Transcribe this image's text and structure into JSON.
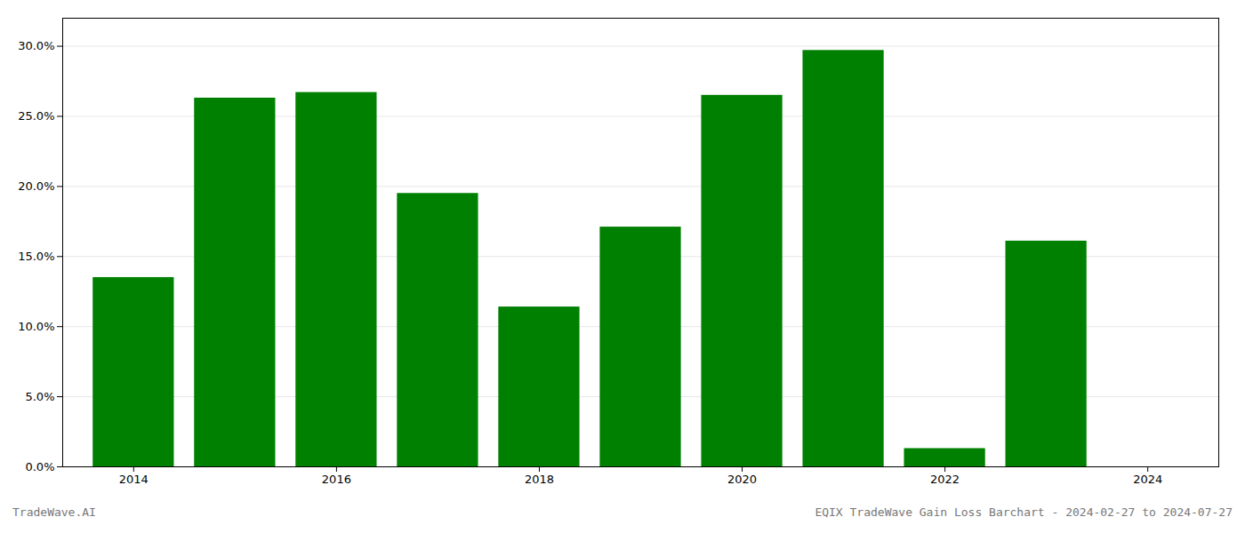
{
  "chart_data": {
    "type": "bar",
    "title": "EQIX TradeWave Gain Loss Barchart - 2024-02-27 to 2024-07-27",
    "annotations": [
      "TradeWave.AI"
    ],
    "x": [
      2014,
      2015,
      2016,
      2017,
      2018,
      2019,
      2020,
      2021,
      2022,
      2023,
      2024
    ],
    "values": [
      0.135,
      0.263,
      0.267,
      0.195,
      0.114,
      0.171,
      0.265,
      0.297,
      0.013,
      0.161,
      0.0
    ],
    "color": "#008000",
    "xlim": [
      2013.3,
      2024.7
    ],
    "xticks": [
      2014,
      2016,
      2018,
      2020,
      2022,
      2024
    ],
    "ylim": [
      0,
      0.32
    ],
    "yticks": [
      {
        "value": 0.0,
        "label": "0.0%"
      },
      {
        "value": 0.05,
        "label": "5.0%"
      },
      {
        "value": 0.1,
        "label": "10.0%"
      },
      {
        "value": 0.15,
        "label": "15.0%"
      },
      {
        "value": 0.2,
        "label": "20.0%"
      },
      {
        "value": 0.25,
        "label": "25.0%"
      },
      {
        "value": 0.3,
        "label": "30.0%"
      }
    ],
    "grid": true
  }
}
